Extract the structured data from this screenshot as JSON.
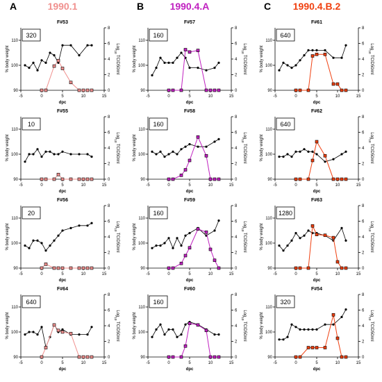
{
  "figure": {
    "columns": [
      {
        "letter": "A",
        "strain": "1990.1",
        "color": "#f0908e"
      },
      {
        "letter": "B",
        "strain": "1990.4.A",
        "color": "#c020c0"
      },
      {
        "letter": "C",
        "strain": "1990.4.B.2",
        "color": "#f04010"
      }
    ]
  },
  "axis_text": {
    "ylabel_left": "% body weight",
    "ylabel_right_prefix": "Log",
    "ylabel_right_sub": "10",
    "ylabel_right_suffix": " TCID50/ml",
    "xlabel": "dpc"
  },
  "chart_data": [
    {
      "type": "line",
      "panel": "A1",
      "title": "F#53",
      "box_value": "320",
      "xlim": [
        -5,
        15
      ],
      "ylim": [
        90,
        115
      ],
      "y2lim": [
        0,
        8
      ],
      "xticks": [
        -5,
        0,
        5,
        10,
        15
      ],
      "yticks": [
        90,
        100,
        110
      ],
      "y2ticks": [
        0,
        2,
        4,
        6,
        8
      ],
      "series": [
        {
          "x": [
            -4,
            -3,
            -2,
            -1,
            0,
            1,
            2,
            3,
            4,
            5,
            7,
            9,
            11,
            12
          ],
          "values": [
            100,
            99,
            101,
            98,
            102,
            101,
            105,
            104,
            101,
            108,
            108,
            104,
            108,
            108
          ]
        },
        {
          "x": [
            0,
            1,
            3,
            4,
            5,
            7,
            9,
            10,
            11,
            12
          ],
          "values": [
            0,
            0,
            3.1,
            3.8,
            2.8,
            1.0,
            0,
            0,
            0,
            0
          ]
        }
      ]
    },
    {
      "type": "line",
      "panel": "B1",
      "title": "F#57",
      "box_value": "160",
      "xlim": [
        -5,
        15
      ],
      "ylim": [
        90,
        115
      ],
      "y2lim": [
        0,
        8
      ],
      "xticks": [
        -5,
        0,
        5,
        10,
        15
      ],
      "yticks": [
        90,
        100,
        110
      ],
      "y2ticks": [
        0,
        2,
        4,
        6,
        8
      ],
      "series": [
        {
          "x": [
            -4,
            -3,
            -2,
            -1,
            0,
            1,
            2,
            3,
            4,
            5,
            7,
            9,
            11,
            12
          ],
          "values": [
            96,
            99,
            103,
            101,
            101,
            101,
            103,
            105,
            103,
            99,
            99,
            98,
            99,
            101
          ]
        },
        {
          "x": [
            0,
            1,
            3,
            4,
            5,
            7,
            9,
            10,
            11,
            12
          ],
          "values": [
            0,
            0,
            0,
            5.2,
            4.9,
            5.1,
            0,
            0,
            0,
            0
          ]
        }
      ]
    },
    {
      "type": "line",
      "panel": "C1",
      "title": "F#61",
      "box_value": "640",
      "xlim": [
        -5,
        15
      ],
      "ylim": [
        90,
        115
      ],
      "y2lim": [
        0,
        8
      ],
      "xticks": [
        -5,
        0,
        5,
        10,
        15
      ],
      "yticks": [
        90,
        100,
        110
      ],
      "y2ticks": [
        0,
        2,
        4,
        6,
        8
      ],
      "series": [
        {
          "x": [
            -4,
            -3,
            -2,
            -1,
            0,
            1,
            2,
            3,
            4,
            5,
            7,
            9,
            11,
            12
          ],
          "values": [
            98,
            101,
            100,
            99,
            100,
            102,
            104,
            106,
            106,
            106,
            106,
            103,
            103,
            108
          ]
        },
        {
          "x": [
            0,
            1,
            3,
            4,
            5,
            7,
            9,
            10,
            11,
            12
          ],
          "values": [
            0,
            0,
            0,
            4.4,
            4.6,
            4.6,
            0.8,
            0.8,
            0,
            0
          ]
        }
      ]
    },
    {
      "type": "line",
      "panel": "A2",
      "title": "F#55",
      "box_value": "10",
      "xlim": [
        -5,
        15
      ],
      "ylim": [
        90,
        115
      ],
      "y2lim": [
        0,
        8
      ],
      "xticks": [
        -5,
        0,
        5,
        10,
        15
      ],
      "yticks": [
        90,
        100,
        110
      ],
      "y2ticks": [
        0,
        2,
        4,
        6,
        8
      ],
      "series": [
        {
          "x": [
            -4,
            -3,
            -2,
            -1,
            0,
            1,
            2,
            3,
            4,
            5,
            7,
            9,
            11,
            12
          ],
          "values": [
            97,
            100,
            100,
            102,
            99,
            101,
            101,
            100,
            100,
            101,
            100,
            100,
            100,
            99
          ]
        },
        {
          "x": [
            0,
            1,
            3,
            4,
            5,
            7,
            9,
            10,
            11,
            12
          ],
          "values": [
            0,
            0,
            0,
            0.6,
            0,
            0,
            0,
            0,
            0,
            0
          ]
        }
      ]
    },
    {
      "type": "line",
      "panel": "B2",
      "title": "F#58",
      "box_value": "160",
      "xlim": [
        -5,
        15
      ],
      "ylim": [
        90,
        115
      ],
      "y2lim": [
        0,
        8
      ],
      "xticks": [
        -5,
        0,
        5,
        10,
        15
      ],
      "yticks": [
        90,
        100,
        110
      ],
      "y2ticks": [
        0,
        2,
        4,
        6,
        8
      ],
      "series": [
        {
          "x": [
            -4,
            -3,
            -2,
            -1,
            0,
            1,
            2,
            3,
            4,
            5,
            7,
            9,
            11,
            12
          ],
          "values": [
            101,
            100,
            101,
            99,
            100,
            101,
            100,
            102,
            103,
            104,
            103,
            103,
            105,
            106
          ]
        },
        {
          "x": [
            0,
            1,
            3,
            4,
            5,
            7,
            9,
            10,
            11,
            12
          ],
          "values": [
            0,
            0,
            0.5,
            1.2,
            2.4,
            5.4,
            3.0,
            0,
            0,
            0
          ]
        }
      ]
    },
    {
      "type": "line",
      "panel": "C2",
      "title": "F#62",
      "box_value": "640",
      "xlim": [
        -5,
        15
      ],
      "ylim": [
        90,
        115
      ],
      "y2lim": [
        0,
        8
      ],
      "xticks": [
        -5,
        0,
        5,
        10,
        15
      ],
      "yticks": [
        90,
        100,
        110
      ],
      "y2ticks": [
        0,
        2,
        4,
        6,
        8
      ],
      "series": [
        {
          "x": [
            -4,
            -3,
            -2,
            -1,
            0,
            1,
            2,
            3,
            4,
            5,
            7,
            9,
            11,
            12
          ],
          "values": [
            99,
            99,
            100,
            99,
            101,
            101,
            102,
            101,
            101,
            100,
            97,
            98,
            100,
            101
          ]
        },
        {
          "x": [
            0,
            1,
            3,
            4,
            5,
            7,
            9,
            10,
            11,
            12
          ],
          "values": [
            0,
            0,
            0,
            2.4,
            4.8,
            3.0,
            0,
            0,
            0,
            0
          ]
        }
      ]
    },
    {
      "type": "line",
      "panel": "A3",
      "title": "F#56",
      "box_value": "20",
      "xlim": [
        -5,
        15
      ],
      "ylim": [
        90,
        115
      ],
      "y2lim": [
        0,
        8
      ],
      "xticks": [
        -5,
        0,
        5,
        10,
        15
      ],
      "yticks": [
        90,
        100,
        110
      ],
      "y2ticks": [
        0,
        2,
        4,
        6,
        8
      ],
      "series": [
        {
          "x": [
            -4,
            -3,
            -2,
            -1,
            0,
            1,
            2,
            3,
            4,
            5,
            7,
            9,
            11,
            12
          ],
          "values": [
            99,
            98,
            101,
            101,
            100,
            97,
            99,
            101,
            103,
            105,
            106,
            107,
            107,
            108
          ]
        },
        {
          "x": [
            0,
            1,
            3,
            4,
            5,
            7,
            9,
            10,
            11,
            12
          ],
          "values": [
            0,
            0.5,
            0,
            0,
            0,
            0,
            0,
            0,
            0,
            0
          ]
        }
      ]
    },
    {
      "type": "line",
      "panel": "B3",
      "title": "F#59",
      "box_value": "160",
      "xlim": [
        -5,
        15
      ],
      "ylim": [
        90,
        115
      ],
      "y2lim": [
        0,
        8
      ],
      "xticks": [
        -5,
        0,
        5,
        10,
        15
      ],
      "yticks": [
        90,
        100,
        110
      ],
      "y2ticks": [
        0,
        2,
        4,
        6,
        8
      ],
      "series": [
        {
          "x": [
            -4,
            -3,
            -2,
            -1,
            0,
            1,
            2,
            3,
            4,
            5,
            7,
            9,
            11,
            12
          ],
          "values": [
            98,
            99,
            99,
            100,
            102,
            98,
            102,
            99,
            103,
            104,
            106,
            103,
            105,
            109
          ]
        },
        {
          "x": [
            0,
            1,
            3,
            4,
            5,
            7,
            9,
            10,
            11,
            12
          ],
          "values": [
            0,
            0,
            0.6,
            1.6,
            2.6,
            5.0,
            4.6,
            2.4,
            1.0,
            0
          ]
        }
      ]
    },
    {
      "type": "line",
      "panel": "C3",
      "title": "F#63",
      "box_value": "1280",
      "xlim": [
        -5,
        15
      ],
      "ylim": [
        90,
        115
      ],
      "y2lim": [
        0,
        8
      ],
      "xticks": [
        -5,
        0,
        5,
        10,
        15
      ],
      "yticks": [
        90,
        100,
        110
      ],
      "y2ticks": [
        0,
        2,
        4,
        6,
        8
      ],
      "series": [
        {
          "x": [
            -4,
            -3,
            -2,
            -1,
            0,
            1,
            2,
            3,
            4,
            5,
            7,
            9,
            11,
            12
          ],
          "values": [
            99,
            97,
            99,
            101,
            104,
            102,
            103,
            105,
            104,
            104,
            103,
            101,
            106,
            101
          ]
        },
        {
          "x": [
            0,
            1,
            3,
            4,
            5,
            7,
            9,
            10,
            11,
            12
          ],
          "values": [
            0,
            0,
            0,
            5.4,
            4.3,
            4.2,
            3.9,
            0.8,
            0,
            0
          ]
        }
      ]
    },
    {
      "type": "line",
      "panel": "A4",
      "title": "F#64",
      "box_value": "640",
      "xlim": [
        -5,
        15
      ],
      "ylim": [
        90,
        115
      ],
      "y2lim": [
        0,
        8
      ],
      "xticks": [
        -5,
        0,
        5,
        10,
        15
      ],
      "yticks": [
        90,
        100,
        110
      ],
      "y2ticks": [
        0,
        2,
        4,
        6,
        8
      ],
      "series": [
        {
          "x": [
            -4,
            -3,
            -2,
            -1,
            0,
            1,
            2,
            3,
            4,
            5,
            7,
            9,
            11,
            12
          ],
          "values": [
            99,
            100,
            100,
            99,
            102,
            94,
            98,
            103,
            100,
            101,
            99,
            99,
            99,
            102
          ]
        },
        {
          "x": [
            0,
            1,
            3,
            4,
            5,
            7,
            9,
            10,
            11,
            12
          ],
          "values": [
            0,
            1.2,
            4.1,
            3.4,
            3.2,
            3.0,
            0,
            0,
            0,
            0
          ]
        }
      ]
    },
    {
      "type": "line",
      "panel": "B4",
      "title": "F#60",
      "box_value": "160",
      "xlim": [
        -5,
        15
      ],
      "ylim": [
        90,
        115
      ],
      "y2lim": [
        0,
        8
      ],
      "xticks": [
        -5,
        0,
        5,
        10,
        15
      ],
      "yticks": [
        90,
        100,
        110
      ],
      "y2ticks": [
        0,
        2,
        4,
        6,
        8
      ],
      "series": [
        {
          "x": [
            -4,
            -3,
            -2,
            -1,
            0,
            1,
            2,
            3,
            4,
            5,
            7,
            9,
            11,
            12
          ],
          "values": [
            98,
            101,
            103,
            99,
            101,
            101,
            98,
            99,
            103,
            104,
            103,
            101,
            99,
            99
          ]
        },
        {
          "x": [
            0,
            1,
            3,
            4,
            5,
            7,
            9,
            10,
            11,
            12
          ],
          "values": [
            0,
            0,
            0,
            1.4,
            4.3,
            4.1,
            3.4,
            0,
            0,
            0
          ]
        }
      ]
    },
    {
      "type": "line",
      "panel": "C4",
      "title": "F#54",
      "box_value": "320",
      "xlim": [
        -5,
        15
      ],
      "ylim": [
        90,
        115
      ],
      "y2lim": [
        0,
        8
      ],
      "xticks": [
        -5,
        0,
        5,
        10,
        15
      ],
      "yticks": [
        90,
        100,
        110
      ],
      "y2ticks": [
        0,
        2,
        4,
        6,
        8
      ],
      "series": [
        {
          "x": [
            -4,
            -3,
            -2,
            -1,
            0,
            1,
            2,
            3,
            4,
            5,
            7,
            9,
            11,
            12
          ],
          "values": [
            97,
            97,
            98,
            103,
            102,
            101,
            101,
            101,
            101,
            101,
            103,
            103,
            106,
            109
          ]
        },
        {
          "x": [
            0,
            1,
            3,
            4,
            5,
            7,
            9,
            10,
            11,
            12
          ],
          "values": [
            0,
            0,
            1.2,
            1.2,
            1.2,
            1.2,
            5.4,
            2.4,
            0,
            0
          ]
        }
      ]
    }
  ]
}
